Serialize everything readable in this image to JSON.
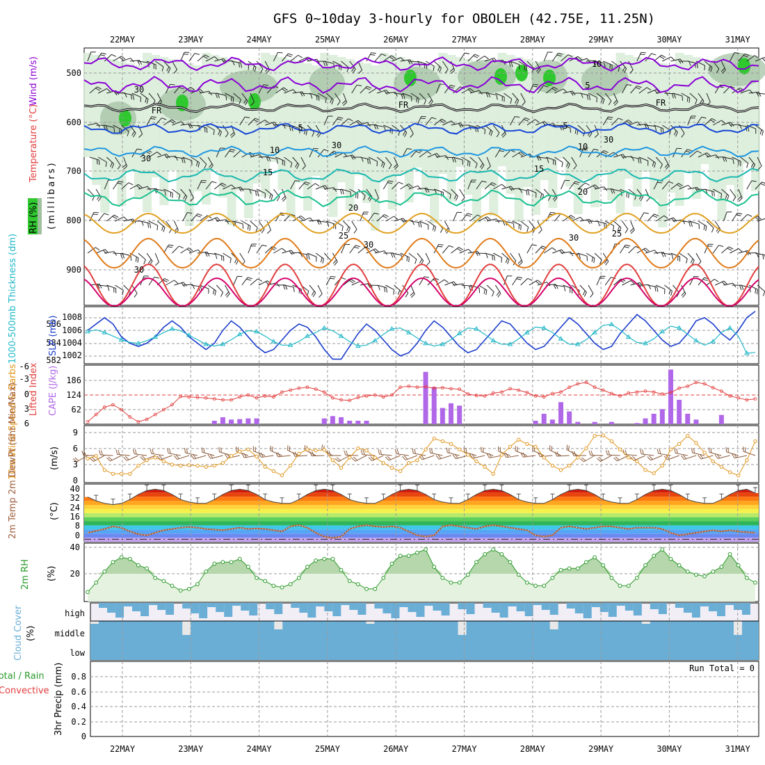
{
  "title": "GFS 0~10day 3-hourly for OBOLEH (42.75E, 11.25N)",
  "dates": [
    "22MAY",
    "23MAY",
    "24MAY",
    "25MAY",
    "26MAY",
    "27MAY",
    "28MAY",
    "29MAY",
    "30MAY",
    "31MAY"
  ],
  "colors": {
    "wind_contour": "#8a00d6",
    "freezing": "#000000",
    "t5": "#1747d6",
    "t10": "#1e96e0",
    "t15": "#18b8b0",
    "t20": "#19c08f",
    "t25": "#e0a020",
    "t30": "#e07a18",
    "t35": "#e23c3c",
    "t40": "#d4006a",
    "rh_fill": "#d8ecd8",
    "rh_dark": "#9fbf9f",
    "rh_green": "#2fc82f",
    "slp": "#1a3ccc",
    "thickness": "#22b8c8",
    "lifted": "#e23c3c",
    "cape": "#b068e8",
    "wind10": "#e0951c",
    "rh2m": "#2a9a2a",
    "cloud": "#6aaed6",
    "cloud_bg": "#f2eef6"
  },
  "panels": {
    "upper": {
      "ylabel_rh": "RH (%)",
      "ylabel_temp": "Temperature (°C)",
      "ylabel_wind": "Wind (m/s)",
      "ylabel_pressure": "(millibars)",
      "ticks": [
        "500",
        "600",
        "700",
        "800",
        "900"
      ],
      "contour_labels": [
        {
          "text": "10",
          "kind": "wind"
        },
        {
          "text": "5",
          "kind": "wind"
        },
        {
          "text": "FR",
          "kind": "fr"
        },
        {
          "text": "FR",
          "kind": "fr"
        },
        {
          "text": "FR",
          "kind": "fr"
        },
        {
          "text": "5",
          "kind": "t5"
        },
        {
          "text": "5",
          "kind": "t5"
        },
        {
          "text": "10",
          "kind": "t10"
        },
        {
          "text": "10",
          "kind": "t10"
        },
        {
          "text": "15",
          "kind": "t15"
        },
        {
          "text": "15",
          "kind": "t15"
        },
        {
          "text": "20",
          "kind": "t20"
        },
        {
          "text": "20",
          "kind": "t20"
        },
        {
          "text": "25",
          "kind": "t25"
        },
        {
          "text": "25",
          "kind": "t25"
        },
        {
          "text": "30",
          "kind": "t30"
        },
        {
          "text": "30",
          "kind": "t30"
        },
        {
          "text": "30",
          "kind": "t30"
        },
        {
          "text": "30",
          "kind": "rh"
        },
        {
          "text": "30",
          "kind": "rh"
        },
        {
          "text": "30",
          "kind": "rh"
        },
        {
          "text": "30",
          "kind": "rh"
        }
      ]
    },
    "slp": {
      "ylabel_thickness": "1000-500mb Thickness (dm)",
      "ylabel_slp": "SLP (mb)",
      "thickness_ticks": [
        "586",
        "584",
        "582"
      ],
      "slp_ticks": [
        "1008",
        "1006",
        "1004",
        "1002"
      ]
    },
    "cape": {
      "ylabel_li": "Lifted Index",
      "ylabel_cape": "CAPE (J/kg)",
      "li_ticks": [
        "-6",
        "-3",
        "0",
        "3",
        "6"
      ],
      "cape_ticks": [
        "186",
        "124",
        "62"
      ]
    },
    "wind10": {
      "ylabel": "10m Wind Speed & Barbs",
      "ylabel_unit": "(m/s)",
      "ticks": [
        "9",
        "6",
        "3",
        "0"
      ]
    },
    "temp2m": {
      "ylabel": "2m Temp 2m DewPt (6hr Min/Max)",
      "ylabel_unit": "(°C)",
      "ticks": [
        "40",
        "32",
        "24",
        "16",
        "8",
        "0"
      ]
    },
    "rh2m": {
      "ylabel": "2m RH",
      "ylabel_unit": "(%)",
      "ticks": [
        "40",
        "20"
      ]
    },
    "cloud": {
      "ylabel": "Cloud Cover",
      "ylabel_unit": "(%)",
      "levels": [
        "high",
        "middle",
        "low"
      ]
    },
    "precip": {
      "ylabel_left": "Total / Rain",
      "ylabel_conv": "Convective",
      "ylabel": "3hr Precip (mm)",
      "ticks": [
        "0.8",
        "0.6",
        "0.4",
        "0.2",
        "0"
      ],
      "run_total": "Run Total = 0"
    }
  },
  "chart_data": [
    {
      "type": "line",
      "name": "slp_thickness",
      "x_start": "2025-05-21 12Z",
      "x_step_hours": 3,
      "count": 80,
      "series": [
        {
          "name": "SLP (mb)",
          "ylim": [
            1001,
            1009.5
          ],
          "values": [
            1006,
            1007,
            1008,
            1007,
            1005,
            1004,
            1003.5,
            1004,
            1005,
            1006.5,
            1007.5,
            1006.5,
            1005,
            1004,
            1003,
            1004,
            1006,
            1007.5,
            1006.5,
            1005,
            1003.5,
            1002.5,
            1003,
            1004.5,
            1006,
            1007,
            1006.5,
            1005,
            1003,
            1001.5,
            1001.5,
            1003.5,
            1005.5,
            1007,
            1006,
            1004.5,
            1003,
            1002,
            1002.5,
            1004,
            1006,
            1007.5,
            1006.5,
            1005,
            1003.5,
            1002.5,
            1003,
            1004.5,
            1006,
            1007.5,
            1007,
            1005.5,
            1004,
            1003,
            1003.5,
            1005,
            1006.5,
            1008,
            1007,
            1005.5,
            1004,
            1003,
            1003.5,
            1005.5,
            1007,
            1008.5,
            1007.5,
            1006,
            1004.5,
            1003.5,
            1004,
            1005.5,
            1007.5,
            1008,
            1007,
            1005.5,
            1004.5,
            1006,
            1008,
            1009
          ]
        },
        {
          "name": "1000-500mb Thickness (dm)",
          "ylim": [
            581.5,
            587.5
          ],
          "values": [
            584.9,
            585.1,
            584.8,
            584.4,
            584.0,
            583.7,
            583.6,
            583.9,
            584.3,
            584.8,
            585.2,
            585.0,
            584.5,
            584.0,
            583.5,
            583.3,
            583.5,
            584.0,
            584.6,
            585.0,
            584.9,
            584.4,
            583.8,
            583.4,
            583.4,
            583.8,
            584.4,
            584.8,
            585.3,
            585.0,
            584.4,
            583.8,
            583.3,
            583.4,
            583.9,
            584.6,
            585.2,
            585.3,
            584.8,
            584.2,
            583.6,
            583.3,
            583.5,
            584.0,
            584.7,
            585.3,
            585.2,
            584.6,
            583.9,
            583.5,
            583.5,
            584.1,
            584.8,
            585.4,
            585.3,
            584.8,
            584.1,
            583.5,
            583.5,
            584.0,
            584.8,
            585.6,
            585.7,
            585.1,
            584.3,
            583.7,
            583.6,
            584.1,
            584.9,
            585.5,
            585.3,
            584.6,
            583.9,
            583.4,
            583.8,
            584.8,
            585.3,
            584.4,
            582.5,
            582.6
          ]
        }
      ]
    },
    {
      "type": "bar",
      "name": "cape_li",
      "x_start": "2025-05-21 12Z",
      "x_step_hours": 3,
      "count": 80,
      "series": [
        {
          "name": "CAPE (J/kg)",
          "ylim": [
            0,
            248
          ],
          "values": [
            0,
            0,
            0,
            0,
            0,
            0,
            0,
            0,
            0,
            0,
            0,
            0,
            0,
            0,
            0,
            15,
            30,
            20,
            22,
            25,
            25,
            0,
            0,
            0,
            0,
            0,
            0,
            0,
            25,
            35,
            30,
            15,
            15,
            15,
            0,
            0,
            0,
            0,
            0,
            0,
            225,
            160,
            70,
            90,
            80,
            0,
            0,
            0,
            0,
            0,
            0,
            0,
            0,
            15,
            45,
            20,
            95,
            55,
            10,
            0,
            10,
            0,
            10,
            0,
            0,
            5,
            25,
            45,
            65,
            235,
            105,
            45,
            20,
            0,
            0,
            40,
            0,
            0,
            0,
            0
          ]
        },
        {
          "name": "Lifted Index",
          "ylim": [
            -6,
            6
          ],
          "values": [
            5.5,
            4,
            2.5,
            2,
            3,
            4.5,
            5.5,
            5,
            4,
            3,
            2,
            0.3,
            0.4,
            0.5,
            0.6,
            0.8,
            1,
            1,
            0.4,
            0,
            0.6,
            0.2,
            0.4,
            -0.6,
            -1,
            -1.4,
            -1.6,
            -1.2,
            -0.6,
            0.6,
            1,
            1.1,
            0.5,
            0.2,
            0,
            0.4,
            0,
            -1.6,
            -1.8,
            -1.6,
            -1.7,
            -1.4,
            -1.5,
            -1.3,
            -1.2,
            -0.2,
            0.1,
            0.2,
            -0.4,
            -0.6,
            -1.3,
            -1,
            -0.5,
            0.2,
            0.4,
            -0.3,
            -0.6,
            -1.6,
            -2.3,
            -2.6,
            -1.6,
            -1,
            -0.3,
            0.2,
            -0.4,
            -0.6,
            -0.8,
            -0.6,
            -0.2,
            -0.5,
            -1.4,
            -1.8,
            -2.6,
            -2.3,
            -1.5,
            -0.8,
            0.2,
            0.6,
            1,
            0.8
          ]
        }
      ]
    },
    {
      "type": "line",
      "name": "wind10m",
      "x_start": "2025-05-21 12Z",
      "x_step_hours": 3,
      "count": 80,
      "series": [
        {
          "name": "10m Wind Speed (m/s)",
          "ylim": [
            0,
            10
          ],
          "values": [
            4.3,
            4.8,
            2.2,
            1.5,
            1.5,
            1.5,
            3,
            4,
            4.5,
            3.8,
            3.2,
            3.0,
            3.1,
            3,
            2.8,
            3,
            3.5,
            4.8,
            5.6,
            6,
            4.7,
            2.8,
            2,
            1.2,
            3,
            5.2,
            6,
            5.8,
            5.9,
            4,
            2.6,
            4.5,
            6.2,
            5.8,
            4.5,
            3.5,
            2.6,
            2,
            3.5,
            4,
            6,
            8,
            7.5,
            7,
            6,
            5,
            3.8,
            2.8,
            1.5,
            5,
            6.5,
            7.8,
            7,
            6.5,
            4.5,
            3,
            2.2,
            3,
            4.5,
            6.2,
            8.5,
            8.6,
            7.5,
            6,
            4.5,
            3.8,
            2.2,
            1.6,
            3,
            6,
            7,
            8.5,
            7.2,
            5.4,
            3.8,
            2.8,
            1.8,
            1.2,
            4,
            7.5
          ]
        }
      ]
    },
    {
      "type": "area",
      "name": "temp2m",
      "x_start": "2025-05-21 12Z",
      "x_step_hours": 3,
      "count": 80,
      "series": [
        {
          "name": "2m Temp (°C)",
          "ylim": [
            0,
            44
          ],
          "values": [
            35,
            32,
            30,
            29,
            30,
            33,
            37,
            40,
            41,
            40,
            37,
            33,
            31,
            30,
            30,
            33,
            37,
            40,
            41,
            40,
            37,
            33,
            31,
            30,
            30,
            33,
            37,
            40,
            41,
            40,
            37,
            33,
            31,
            30,
            30,
            33,
            37,
            40,
            41,
            40,
            37,
            33,
            31,
            30,
            30,
            33,
            37,
            40,
            41,
            40,
            37,
            33,
            31,
            30,
            30,
            33,
            37,
            40,
            41,
            40,
            37,
            33,
            31,
            30,
            30,
            33,
            37,
            40,
            41,
            40,
            37,
            33,
            31,
            30,
            30,
            33,
            37,
            40,
            41,
            38
          ]
        },
        {
          "name": "2m DewPt (°C)",
          "ylim": [
            0,
            44
          ],
          "values": [
            7,
            8.5,
            10,
            12,
            11,
            8,
            6,
            5,
            7,
            9,
            10,
            11,
            11.5,
            11,
            10,
            9.5,
            9,
            10,
            11,
            10,
            10.5,
            10,
            9,
            8,
            12,
            13,
            11,
            7,
            4,
            3,
            4,
            10,
            12,
            13,
            12,
            11.5,
            12,
            11,
            8,
            5,
            4,
            5,
            12,
            13,
            12,
            11,
            10,
            12,
            13,
            12,
            11,
            10,
            9,
            5,
            4,
            5,
            11,
            12,
            11,
            10,
            11,
            12,
            12,
            11,
            10,
            11,
            11,
            11,
            10,
            7,
            5,
            6,
            7,
            8,
            9,
            8,
            9,
            8,
            7.5,
            7
          ]
        }
      ]
    },
    {
      "type": "area",
      "name": "rh2m",
      "x_start": "2025-05-21 12Z",
      "x_step_hours": 3,
      "count": 80,
      "series": [
        {
          "name": "2m RH (%)",
          "ylim": [
            5,
            42
          ],
          "values": [
            11,
            17,
            24,
            30,
            33,
            32,
            28,
            26,
            20,
            18,
            15,
            12,
            13,
            16,
            24,
            29,
            30,
            30,
            32,
            27,
            20,
            18,
            15,
            14,
            16,
            20,
            27,
            31,
            32,
            32,
            25,
            18,
            16,
            13,
            13,
            20,
            29,
            34,
            34,
            36,
            38,
            27,
            20,
            17,
            17,
            22,
            30,
            35,
            38,
            35,
            30,
            22,
            17,
            15,
            15,
            20,
            25,
            26,
            26,
            30,
            33,
            28,
            20,
            15,
            15,
            20,
            28,
            34,
            38,
            32,
            28,
            24,
            22,
            21,
            24,
            27,
            35,
            28,
            20,
            17
          ]
        }
      ]
    }
  ]
}
